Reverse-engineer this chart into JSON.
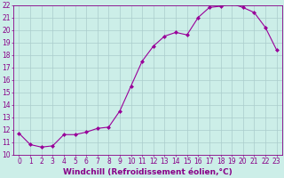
{
  "x": [
    0,
    1,
    2,
    3,
    4,
    5,
    6,
    7,
    8,
    9,
    10,
    11,
    12,
    13,
    14,
    15,
    16,
    17,
    18,
    19,
    20,
    21,
    22,
    23
  ],
  "y": [
    11.7,
    10.8,
    10.6,
    10.7,
    11.6,
    11.6,
    11.8,
    12.1,
    12.2,
    13.5,
    15.5,
    17.5,
    18.7,
    19.5,
    19.8,
    19.6,
    21.0,
    21.8,
    21.9,
    22.1,
    21.8,
    21.4,
    20.2,
    18.4
  ],
  "line_color": "#990099",
  "marker": "D",
  "marker_size": 2.0,
  "bg_color": "#cceee8",
  "grid_color": "#aacccc",
  "xlabel": "Windchill (Refroidissement éolien,°C)",
  "ylim": [
    10,
    22
  ],
  "xlim": [
    -0.5,
    23.5
  ],
  "yticks": [
    10,
    11,
    12,
    13,
    14,
    15,
    16,
    17,
    18,
    19,
    20,
    21,
    22
  ],
  "xticks": [
    0,
    1,
    2,
    3,
    4,
    5,
    6,
    7,
    8,
    9,
    10,
    11,
    12,
    13,
    14,
    15,
    16,
    17,
    18,
    19,
    20,
    21,
    22,
    23
  ],
  "tick_color": "#880088",
  "tick_fontsize": 5.5,
  "xlabel_fontsize": 6.5
}
